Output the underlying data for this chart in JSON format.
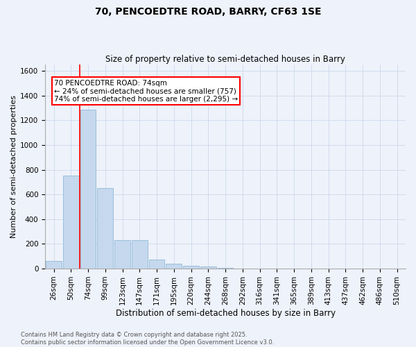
{
  "title_line1": "70, PENCOEDTRE ROAD, BARRY, CF63 1SE",
  "title_line2": "Size of property relative to semi-detached houses in Barry",
  "xlabel": "Distribution of semi-detached houses by size in Barry",
  "ylabel": "Number of semi-detached properties",
  "categories": [
    "26sqm",
    "50sqm",
    "74sqm",
    "99sqm",
    "123sqm",
    "147sqm",
    "171sqm",
    "195sqm",
    "220sqm",
    "244sqm",
    "268sqm",
    "292sqm",
    "316sqm",
    "341sqm",
    "365sqm",
    "389sqm",
    "413sqm",
    "437sqm",
    "462sqm",
    "486sqm",
    "510sqm"
  ],
  "values": [
    60,
    755,
    1285,
    650,
    230,
    230,
    75,
    40,
    25,
    15,
    5,
    0,
    0,
    0,
    0,
    0,
    0,
    0,
    0,
    0,
    0
  ],
  "bar_color": "#c5d8ed",
  "bar_edge_color": "#8fb8d8",
  "annotation_title": "70 PENCOEDTRE ROAD: 74sqm",
  "annotation_line2": "← 24% of semi-detached houses are smaller (757)",
  "annotation_line3": "74% of semi-detached houses are larger (2,295) →",
  "ylim": [
    0,
    1650
  ],
  "yticks": [
    0,
    200,
    400,
    600,
    800,
    1000,
    1200,
    1400,
    1600
  ],
  "footer_line1": "Contains HM Land Registry data © Crown copyright and database right 2025.",
  "footer_line2": "Contains public sector information licensed under the Open Government Licence v3.0.",
  "grid_color": "#ccd8ec",
  "background_color": "#eef2fa",
  "title_fontsize": 10,
  "subtitle_fontsize": 8.5,
  "ylabel_fontsize": 8,
  "xlabel_fontsize": 8.5,
  "tick_fontsize": 7.5,
  "footer_fontsize": 6,
  "annot_fontsize": 7.5
}
